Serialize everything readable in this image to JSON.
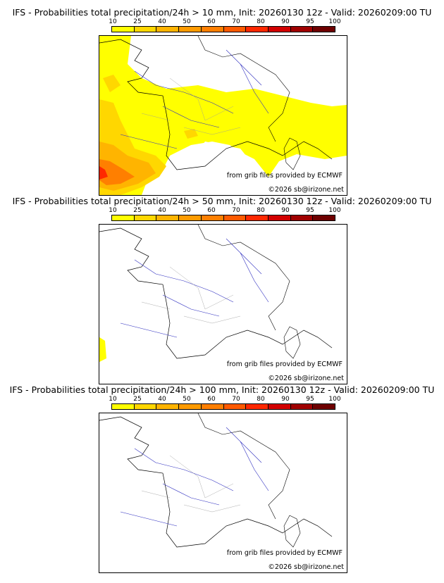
{
  "colorbar": {
    "labels": [
      "10",
      "25",
      "40",
      "50",
      "60",
      "70",
      "80",
      "90",
      "95",
      "100"
    ],
    "colors": [
      "#ffff00",
      "#ffd700",
      "#ffb400",
      "#ff9b00",
      "#ff7f00",
      "#ff5a00",
      "#ff2800",
      "#d20000",
      "#a00000",
      "#6e0000"
    ]
  },
  "credits": {
    "source": "from grib files provided by ECMWF",
    "copyright": "©2026 sb@irizone.net"
  },
  "panels": [
    {
      "title": "IFS - Probabilities total precipitation/24h > 10 mm, Init: 20260130 12z - Valid: 20260209:00 TU",
      "threshold": "10 mm"
    },
    {
      "title": "IFS - Probabilities total precipitation/24h > 50 mm, Init: 20260130 12z - Valid: 20260209:00 TU",
      "threshold": "50 mm"
    },
    {
      "title": "IFS - Probabilities total precipitation/24h > 100 mm, Init: 20260130 12z - Valid: 20260209:00 TU",
      "threshold": "100 mm"
    }
  ]
}
